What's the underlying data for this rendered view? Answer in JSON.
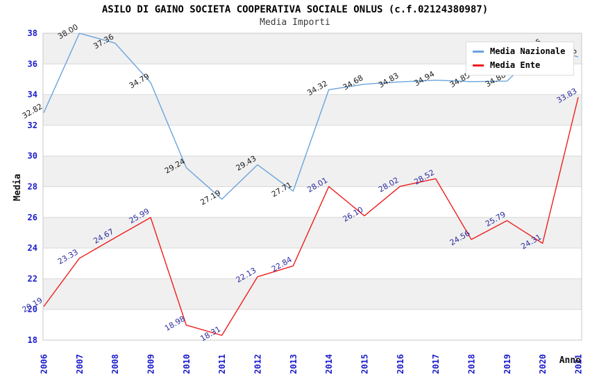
{
  "chart_data": {
    "type": "line",
    "title": "ASILO DI GAINO SOCIETA COOPERATIVA SOCIALE ONLUS (c.f.02124380987)",
    "subtitle": "Media Importi",
    "xlabel": "Anno",
    "ylabel": "Media",
    "x": [
      "2006",
      "2007",
      "2008",
      "2009",
      "2010",
      "2011",
      "2012",
      "2013",
      "2014",
      "2015",
      "2016",
      "2017",
      "2018",
      "2019",
      "2020",
      "2021"
    ],
    "ylim": [
      18,
      38
    ],
    "ytick_step": 2,
    "yticks": [
      "18",
      "20",
      "22",
      "24",
      "26",
      "28",
      "30",
      "32",
      "34",
      "36",
      "38"
    ],
    "grid": "horizontal",
    "bands": "alternating-gray-every-2-units",
    "legend_position": "top-right-inside",
    "series": [
      {
        "name": "Media Nazionale",
        "color": "#69a3dc",
        "label_color": "#1a1a1a",
        "values": [
          32.82,
          38.0,
          37.36,
          34.79,
          29.24,
          27.19,
          29.43,
          27.71,
          34.32,
          34.68,
          34.83,
          34.94,
          34.85,
          34.88,
          37.05,
          36.46
        ],
        "labels": [
          "32.82",
          "38.00",
          "37.36",
          "34.79",
          "29.24",
          "27.19",
          "29.43",
          "27.71",
          "34.32",
          "34.68",
          "34.83",
          "34.94",
          "34.85",
          "34.88",
          "37.05",
          "36.46"
        ],
        "labels_hidden_by_legend": [
          "2018",
          "2019"
        ]
      },
      {
        "name": "Media Ente",
        "color": "#ee1c1c",
        "label_color": "#2b2b9e",
        "values": [
          20.19,
          23.33,
          24.67,
          25.99,
          18.98,
          18.31,
          22.13,
          22.84,
          28.01,
          26.1,
          28.02,
          28.52,
          24.56,
          25.79,
          24.31,
          33.83
        ],
        "labels": [
          "20.19",
          "23.33",
          "24.67",
          "25.99",
          "18.98",
          "18.31",
          "22.13",
          "22.84",
          "28.01",
          "26.10",
          "28.02",
          "28.52",
          "24.56",
          "25.79",
          "24.31",
          "33.83"
        ]
      }
    ],
    "colors": {
      "tick_label": "#1a1acd",
      "band_fill": "#f0f0f0",
      "gridline": "#d9d9d9",
      "plot_border": "#c9c9c9",
      "background": "#ffffff"
    }
  }
}
